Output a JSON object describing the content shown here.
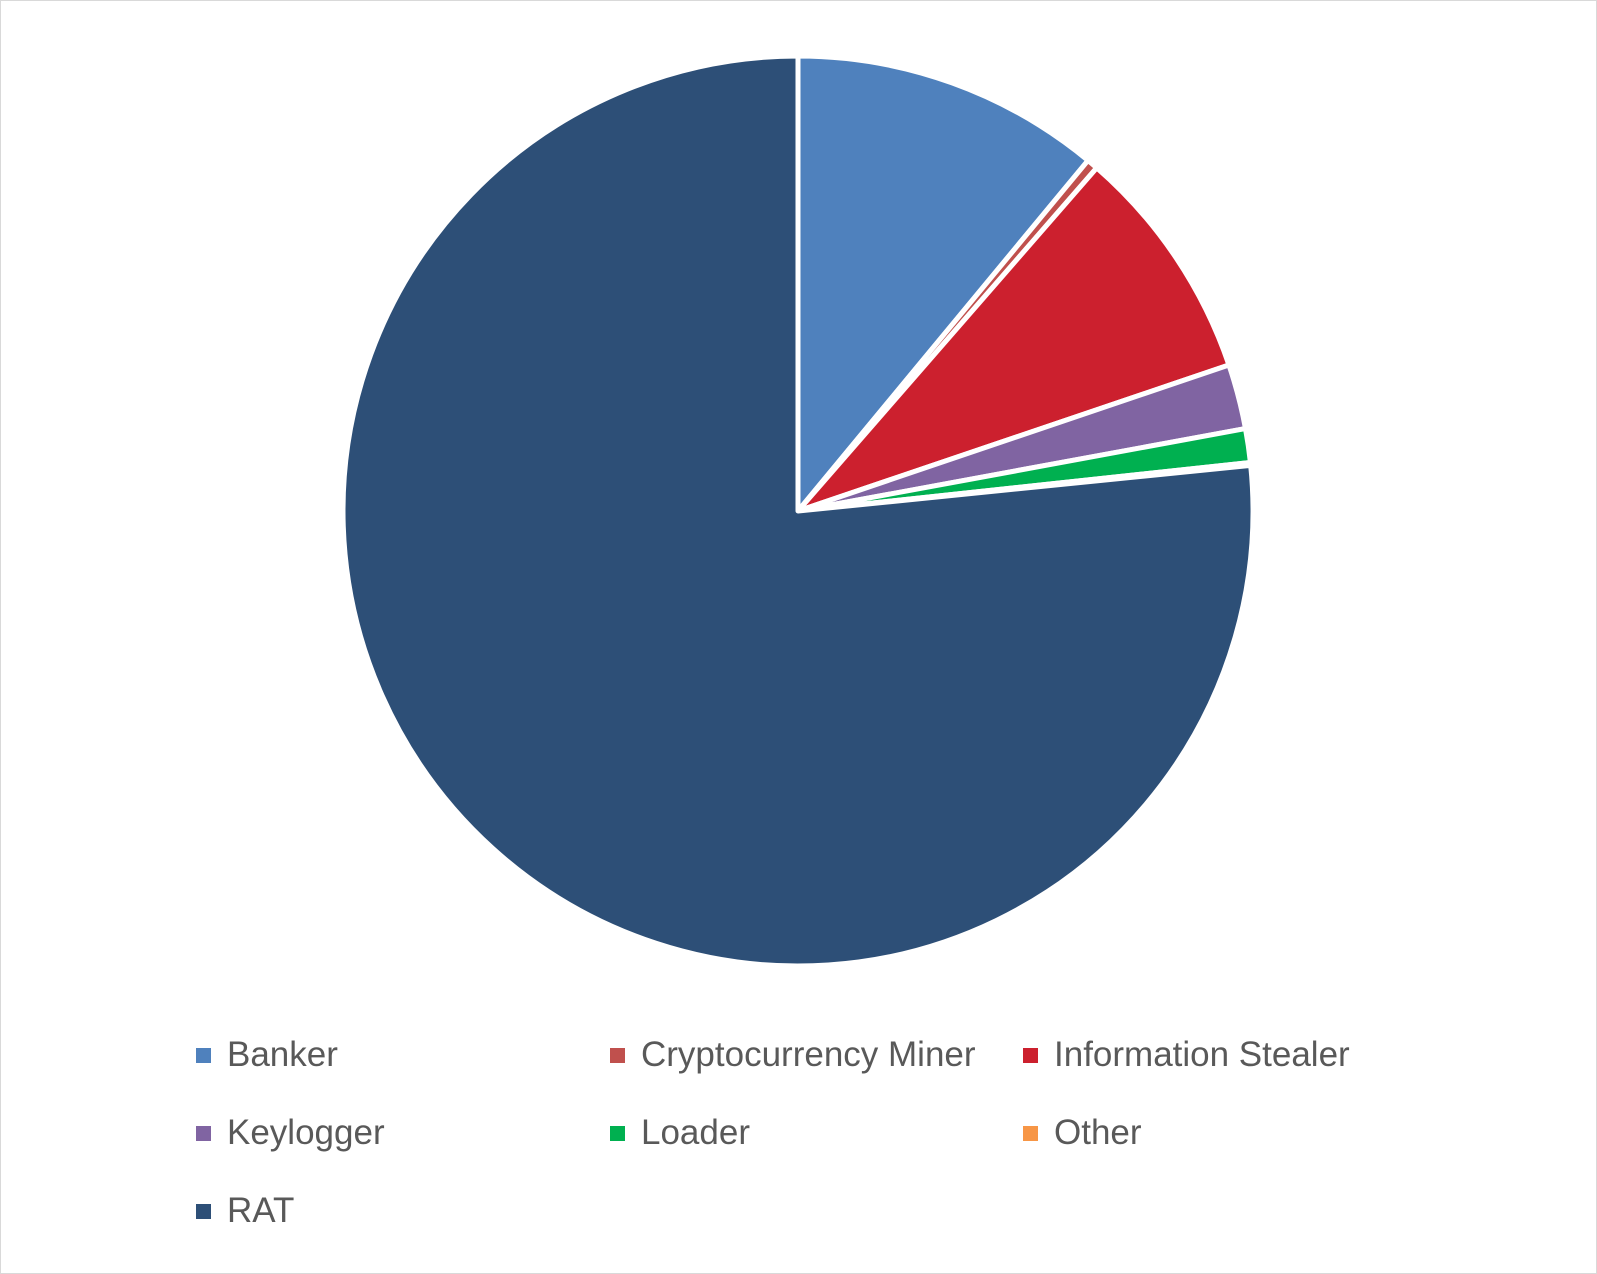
{
  "chart_data": {
    "type": "pie",
    "title": "",
    "start_angle": "12 o'clock, clockwise",
    "legend_position": "bottom",
    "slices": [
      {
        "label": "Banker",
        "value": 11.0,
        "color": "#4f81bd"
      },
      {
        "label": "Cryptocurrency Miner",
        "value": 0.4,
        "color": "#c0504d"
      },
      {
        "label": "Information Stealer",
        "value": 8.4,
        "color": "#cc202e"
      },
      {
        "label": "Keylogger",
        "value": 2.3,
        "color": "#8064a2"
      },
      {
        "label": "Loader",
        "value": 1.2,
        "color": "#00b050"
      },
      {
        "label": "Other",
        "value": 0.1,
        "color": "#f79646"
      },
      {
        "label": "RAT",
        "value": 76.6,
        "color": "#2d4f77"
      }
    ]
  }
}
